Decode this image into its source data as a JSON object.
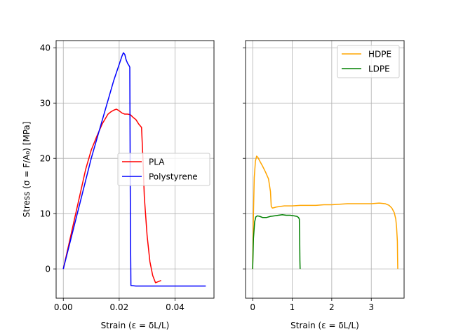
{
  "chart_data": [
    {
      "type": "line",
      "xlabel": "Strain (ε = δL/L)",
      "ylabel": "Stress (σ = F/A₀) [MPa]",
      "xlim": [
        -0.00257,
        0.05393
      ],
      "ylim": [
        -5.3,
        41.3
      ],
      "xticks": [
        0.0,
        0.02,
        0.04
      ],
      "xtick_labels": [
        "0.00",
        "0.02",
        "0.04"
      ],
      "yticks": [
        0,
        10,
        20,
        30,
        40
      ],
      "ytick_labels": [
        "0",
        "10",
        "20",
        "30",
        "40"
      ],
      "grid": true,
      "legend_position": "center-right",
      "series": [
        {
          "name": "PLA",
          "color": "#ff0000",
          "x": [
            0.0,
            0.002,
            0.004,
            0.006,
            0.008,
            0.01,
            0.012,
            0.014,
            0.016,
            0.017,
            0.018,
            0.019,
            0.02,
            0.021,
            0.022,
            0.023,
            0.024,
            0.025,
            0.026,
            0.027,
            0.028,
            0.0285,
            0.029,
            0.03,
            0.031,
            0.032,
            0.033,
            0.034,
            0.035
          ],
          "y": [
            0.0,
            4.5,
            9.0,
            13.5,
            18.0,
            21.5,
            24.0,
            26.3,
            28.0,
            28.4,
            28.7,
            28.9,
            28.6,
            28.2,
            28.0,
            28.0,
            27.9,
            27.4,
            27.0,
            26.2,
            25.6,
            20.0,
            13.0,
            6.0,
            1.3,
            -1.2,
            -2.5,
            -2.3,
            -2.1
          ]
        },
        {
          "name": "Polystyrene",
          "color": "#0000ff",
          "x": [
            0.0,
            0.002,
            0.004,
            0.006,
            0.008,
            0.01,
            0.012,
            0.014,
            0.016,
            0.018,
            0.02,
            0.021,
            0.0215,
            0.022,
            0.0225,
            0.023,
            0.0235,
            0.0238,
            0.024,
            0.0242,
            0.026,
            0.028,
            0.03,
            0.035,
            0.04,
            0.045,
            0.051
          ],
          "y": [
            0.0,
            4.0,
            8.0,
            12.0,
            16.0,
            20.0,
            23.5,
            27.0,
            30.5,
            34.0,
            37.0,
            38.5,
            39.1,
            38.8,
            37.8,
            37.2,
            36.8,
            36.5,
            10.0,
            -3.0,
            -3.1,
            -3.1,
            -3.1,
            -3.1,
            -3.1,
            -3.1,
            -3.1
          ]
        }
      ]
    },
    {
      "type": "line",
      "xlabel": "Strain (ε = δL/L)",
      "ylabel": "",
      "xlim": [
        -0.18,
        3.83
      ],
      "ylim": [
        -5.3,
        41.3
      ],
      "xticks": [
        0,
        1,
        2,
        3
      ],
      "xtick_labels": [
        "0",
        "1",
        "2",
        "3"
      ],
      "yticks": [
        0,
        10,
        20,
        30,
        40
      ],
      "ytick_labels": [],
      "grid": true,
      "legend_position": "top-right",
      "series": [
        {
          "name": "HDPE",
          "color": "#ffa500",
          "x": [
            0.0,
            0.02,
            0.04,
            0.07,
            0.1,
            0.13,
            0.18,
            0.25,
            0.32,
            0.4,
            0.45,
            0.47,
            0.5,
            0.55,
            0.6,
            0.7,
            0.8,
            0.9,
            1.0,
            1.2,
            1.4,
            1.6,
            1.8,
            2.0,
            2.2,
            2.4,
            2.6,
            2.8,
            3.0,
            3.2,
            3.35,
            3.45,
            3.52,
            3.58,
            3.62,
            3.64,
            3.66,
            3.665,
            3.67
          ],
          "y": [
            0.0,
            10.0,
            16.5,
            19.5,
            20.4,
            20.2,
            19.5,
            18.6,
            17.6,
            16.3,
            14.0,
            11.3,
            11.0,
            11.1,
            11.2,
            11.3,
            11.4,
            11.4,
            11.4,
            11.5,
            11.5,
            11.5,
            11.6,
            11.6,
            11.7,
            11.8,
            11.8,
            11.8,
            11.8,
            11.9,
            11.8,
            11.5,
            11.0,
            10.2,
            9.0,
            7.5,
            5.0,
            2.0,
            0.0
          ]
        },
        {
          "name": "LDPE",
          "color": "#008000",
          "x": [
            0.0,
            0.02,
            0.05,
            0.08,
            0.12,
            0.18,
            0.25,
            0.35,
            0.45,
            0.55,
            0.65,
            0.75,
            0.85,
            0.95,
            1.05,
            1.12,
            1.16,
            1.18,
            1.19,
            1.195,
            1.2
          ],
          "y": [
            0.0,
            5.5,
            8.5,
            9.4,
            9.6,
            9.5,
            9.3,
            9.3,
            9.5,
            9.6,
            9.7,
            9.8,
            9.7,
            9.7,
            9.6,
            9.5,
            9.3,
            9.0,
            5.0,
            1.5,
            0.0
          ]
        }
      ]
    }
  ]
}
